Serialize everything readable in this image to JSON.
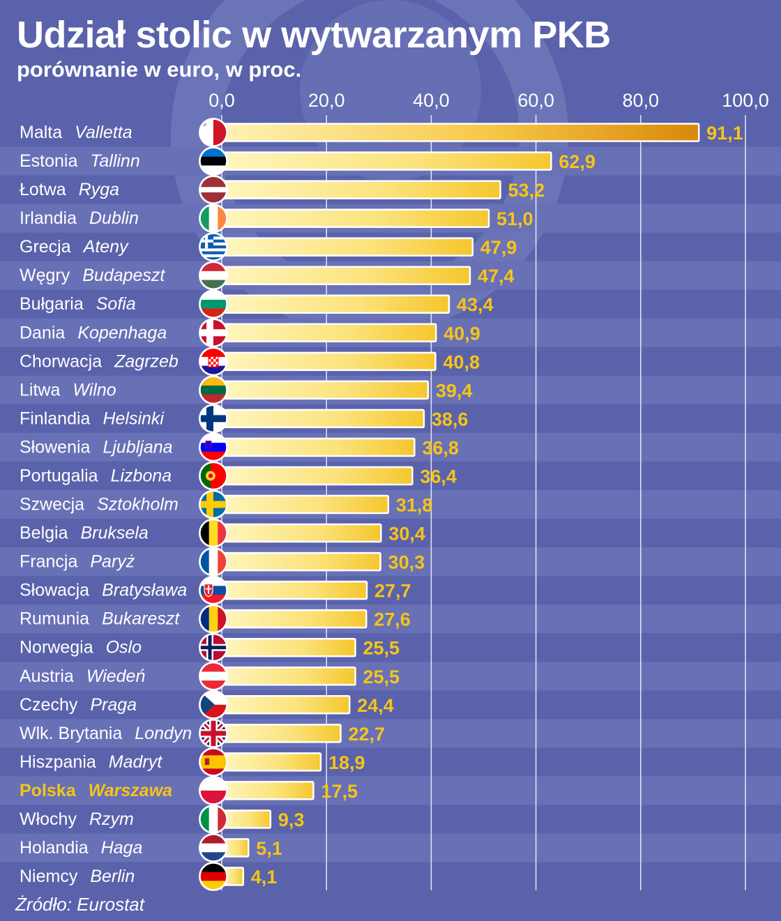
{
  "title": "Udział stolic w wytwarzanym PKB",
  "subtitle": "porównanie w euro, w proc.",
  "source": "Żródło: Eurostat",
  "colors": {
    "background": "#5a62ab",
    "stripe": "#6870b6",
    "bar_light": "#fff4b0",
    "bar_dark": "#f7c82e",
    "bar_top": "#d98a0a",
    "value_label": "#f5c518",
    "highlight_label": "#f5c518",
    "text": "#ffffff"
  },
  "chart_data": {
    "type": "bar",
    "orientation": "horizontal",
    "title": "Udział stolic w wytwarzanym PKB",
    "subtitle": "porównanie w euro, w proc.",
    "xlim": [
      0,
      100
    ],
    "ticks": [
      0,
      20,
      40,
      60,
      80,
      100
    ],
    "tick_labels": [
      "0,0",
      "20,0",
      "40,0",
      "60,0",
      "80,0",
      "100,0"
    ],
    "grid": true,
    "highlight": "Polska",
    "rows": [
      {
        "country": "Malta",
        "city": "Valletta",
        "value": 91.1,
        "label": "91,1",
        "flag": "malta-flag-icon"
      },
      {
        "country": "Estonia",
        "city": "Tallinn",
        "value": 62.9,
        "label": "62,9",
        "flag": "estonia-flag-icon"
      },
      {
        "country": "Łotwa",
        "city": "Ryga",
        "value": 53.2,
        "label": "53,2",
        "flag": "latvia-flag-icon"
      },
      {
        "country": "Irlandia",
        "city": "Dublin",
        "value": 51.0,
        "label": "51,0",
        "flag": "ireland-flag-icon"
      },
      {
        "country": "Grecja",
        "city": "Ateny",
        "value": 47.9,
        "label": "47,9",
        "flag": "greece-flag-icon"
      },
      {
        "country": "Węgry",
        "city": "Budapeszt",
        "value": 47.4,
        "label": "47,4",
        "flag": "hungary-flag-icon"
      },
      {
        "country": "Bułgaria",
        "city": "Sofia",
        "value": 43.4,
        "label": "43,4",
        "flag": "bulgaria-flag-icon"
      },
      {
        "country": "Dania",
        "city": "Kopenhaga",
        "value": 40.9,
        "label": "40,9",
        "flag": "denmark-flag-icon"
      },
      {
        "country": "Chorwacja",
        "city": "Zagrzeb",
        "value": 40.8,
        "label": "40,8",
        "flag": "croatia-flag-icon"
      },
      {
        "country": "Litwa",
        "city": "Wilno",
        "value": 39.4,
        "label": "39,4",
        "flag": "lithuania-flag-icon"
      },
      {
        "country": "Finlandia",
        "city": "Helsinki",
        "value": 38.6,
        "label": "38,6",
        "flag": "finland-flag-icon"
      },
      {
        "country": "Słowenia",
        "city": "Ljubljana",
        "value": 36.8,
        "label": "36,8",
        "flag": "slovenia-flag-icon"
      },
      {
        "country": "Portugalia",
        "city": "Lizbona",
        "value": 36.4,
        "label": "36,4",
        "flag": "portugal-flag-icon"
      },
      {
        "country": "Szwecja",
        "city": "Sztokholm",
        "value": 31.8,
        "label": "31,8",
        "flag": "sweden-flag-icon"
      },
      {
        "country": "Belgia",
        "city": "Bruksela",
        "value": 30.4,
        "label": "30,4",
        "flag": "belgium-flag-icon"
      },
      {
        "country": "Francja",
        "city": "Paryż",
        "value": 30.3,
        "label": "30,3",
        "flag": "france-flag-icon"
      },
      {
        "country": "Słowacja",
        "city": "Bratysława",
        "value": 27.7,
        "label": "27,7",
        "flag": "slovakia-flag-icon"
      },
      {
        "country": "Rumunia",
        "city": "Bukareszt",
        "value": 27.6,
        "label": "27,6",
        "flag": "romania-flag-icon"
      },
      {
        "country": "Norwegia",
        "city": "Oslo",
        "value": 25.5,
        "label": "25,5",
        "flag": "norway-flag-icon"
      },
      {
        "country": "Austria",
        "city": "Wiedeń",
        "value": 25.5,
        "label": "25,5",
        "flag": "austria-flag-icon"
      },
      {
        "country": "Czechy",
        "city": "Praga",
        "value": 24.4,
        "label": "24,4",
        "flag": "czechia-flag-icon"
      },
      {
        "country": "Wlk. Brytania",
        "city": "Londyn",
        "value": 22.7,
        "label": "22,7",
        "flag": "uk-flag-icon"
      },
      {
        "country": "Hiszpania",
        "city": "Madryt",
        "value": 18.9,
        "label": "18,9",
        "flag": "spain-flag-icon"
      },
      {
        "country": "Polska",
        "city": "Warszawa",
        "value": 17.5,
        "label": "17,5",
        "flag": "poland-flag-icon"
      },
      {
        "country": "Włochy",
        "city": "Rzym",
        "value": 9.3,
        "label": "9,3",
        "flag": "italy-flag-icon"
      },
      {
        "country": "Holandia",
        "city": "Haga",
        "value": 5.1,
        "label": "5,1",
        "flag": "netherlands-flag-icon"
      },
      {
        "country": "Niemcy",
        "city": "Berlin",
        "value": 4.1,
        "label": "4,1",
        "flag": "germany-flag-icon"
      }
    ]
  }
}
